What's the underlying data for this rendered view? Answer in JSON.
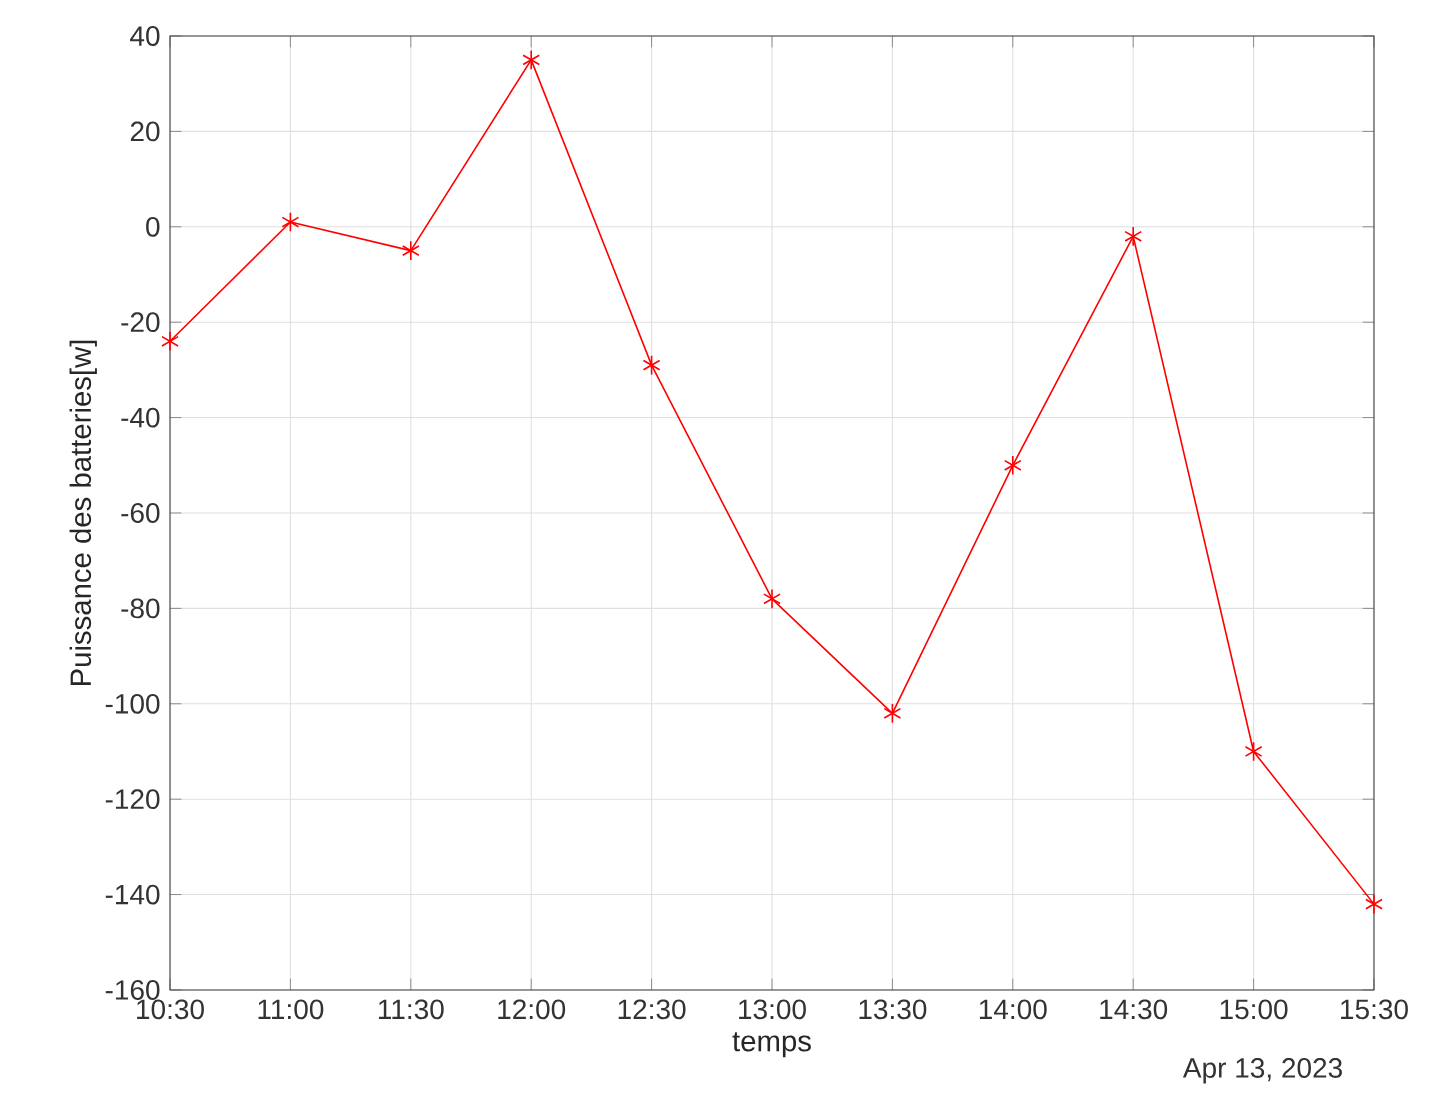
{
  "chart_data": {
    "type": "line",
    "xlabel": "temps",
    "ylabel": "Puissance des batteries[w]",
    "x": [
      10.5,
      11,
      11.5,
      12,
      12.5,
      13,
      13.5,
      14,
      14.5,
      15,
      15.5
    ],
    "series": [
      {
        "color": "#ff0000",
        "values": [
          -24,
          1,
          -5,
          35,
          -29,
          -78,
          -102,
          -50,
          -2,
          -110,
          -142
        ]
      }
    ],
    "xlim": [
      10.5,
      15.5
    ],
    "xticks": [
      {
        "value": 10.5,
        "label": "10:30"
      },
      {
        "value": 11,
        "label": "11:00"
      },
      {
        "value": 11.5,
        "label": "11:30"
      },
      {
        "value": 12,
        "label": "12:00"
      },
      {
        "value": 12.5,
        "label": "12:30"
      },
      {
        "value": 13,
        "label": "13:00"
      },
      {
        "value": 13.5,
        "label": "13:30"
      },
      {
        "value": 14,
        "label": "14:00"
      },
      {
        "value": 14.5,
        "label": "14:30"
      },
      {
        "value": 15,
        "label": "15:00"
      },
      {
        "value": 15.5,
        "label": "15:30"
      }
    ],
    "ylim": [
      -160,
      40
    ],
    "yticks": [
      -160,
      -140,
      -120,
      -100,
      -80,
      -60,
      -40,
      -20,
      0,
      20,
      40
    ],
    "grid": true,
    "marker": "cross",
    "line_style": "solid",
    "annotations": [
      "Apr 13, 2023"
    ]
  }
}
